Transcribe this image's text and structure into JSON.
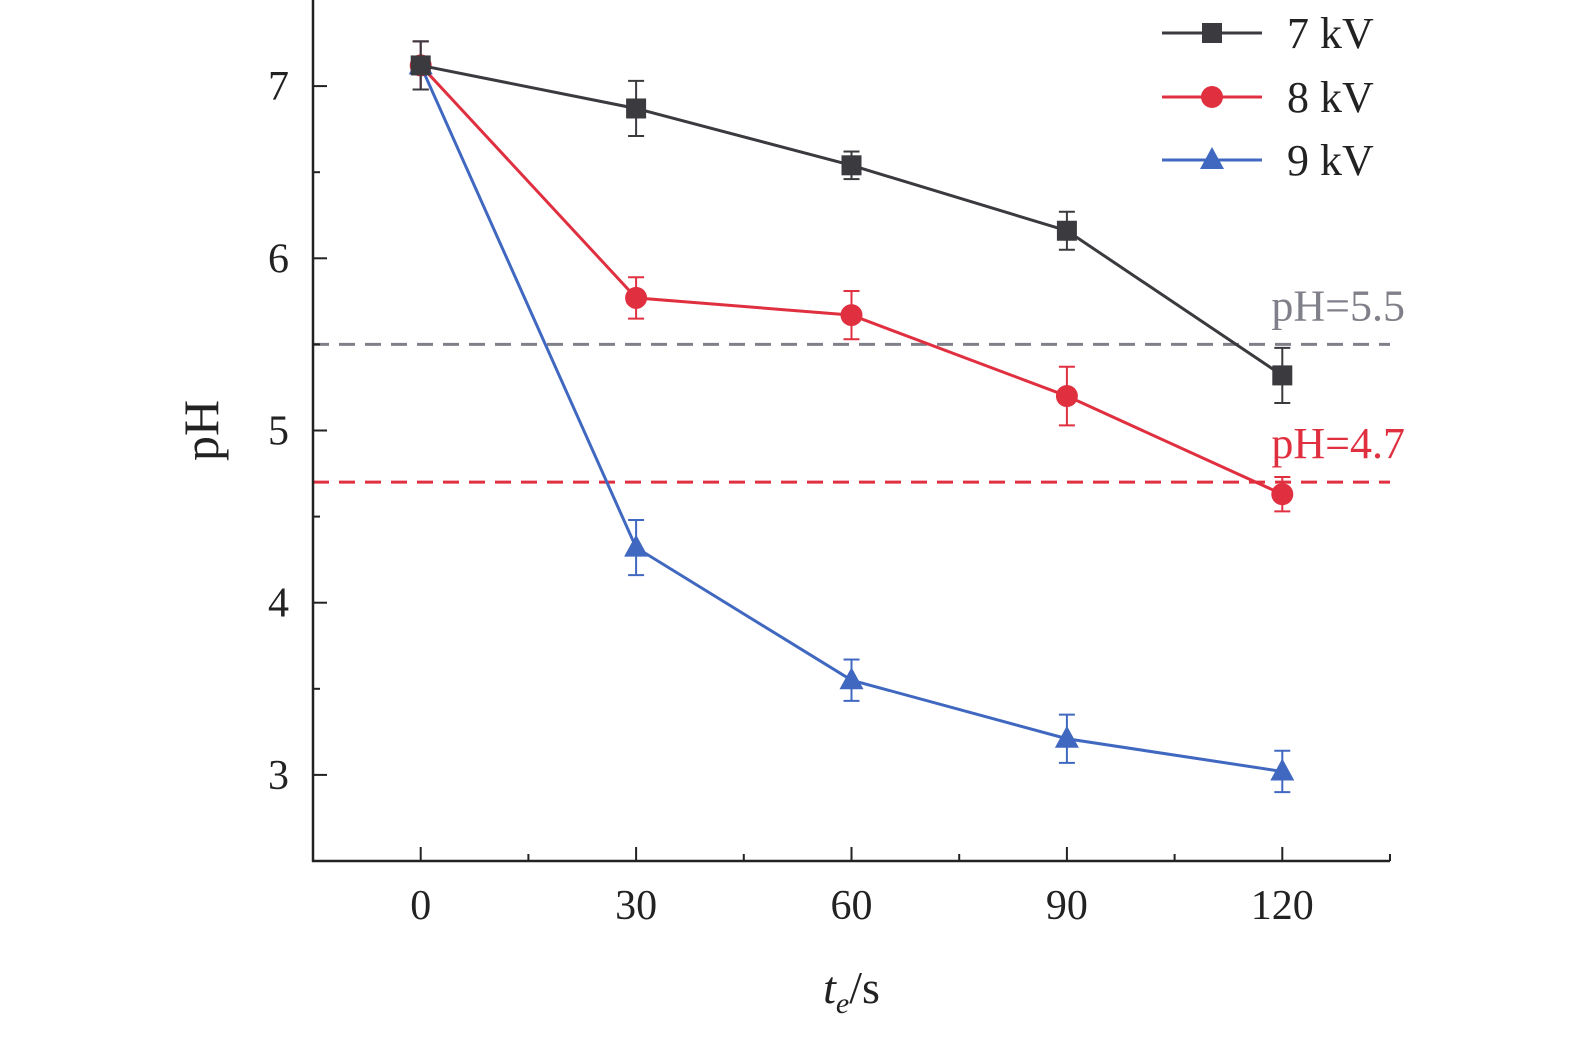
{
  "chart_data": {
    "type": "line",
    "xlabel_main": "t",
    "xlabel_sub": "e",
    "xlabel_unit": "/s",
    "ylabel": "pH",
    "xlim": [
      -15,
      135
    ],
    "ylim": [
      2.5,
      7.5
    ],
    "x_ticks": [
      0,
      30,
      60,
      90,
      120
    ],
    "y_ticks": [
      3,
      4,
      5,
      6,
      7
    ],
    "x": [
      0,
      30,
      60,
      90,
      120
    ],
    "series": [
      {
        "name": "7 kV",
        "color": "#3a3a3f",
        "marker": "square",
        "values": [
          7.12,
          6.87,
          6.54,
          6.16,
          5.32
        ],
        "errors": [
          0.14,
          0.16,
          0.08,
          0.11,
          0.16
        ]
      },
      {
        "name": "8 kV",
        "color": "#e03040",
        "marker": "circle",
        "values": [
          7.12,
          5.77,
          5.67,
          5.2,
          4.63
        ],
        "errors": [
          0.14,
          0.12,
          0.14,
          0.17,
          0.1
        ]
      },
      {
        "name": "9 kV",
        "color": "#4068c0",
        "marker": "triangle",
        "values": [
          7.12,
          4.32,
          3.55,
          3.21,
          3.02
        ],
        "errors": [
          0.14,
          0.16,
          0.12,
          0.14,
          0.12
        ]
      }
    ],
    "reference_lines": [
      {
        "label": "pH=5.5",
        "y": 5.5,
        "color": "#80808a"
      },
      {
        "label": "pH=4.7",
        "y": 4.7,
        "color": "#e03040"
      }
    ],
    "legend_position": "top-right",
    "grid": false
  }
}
